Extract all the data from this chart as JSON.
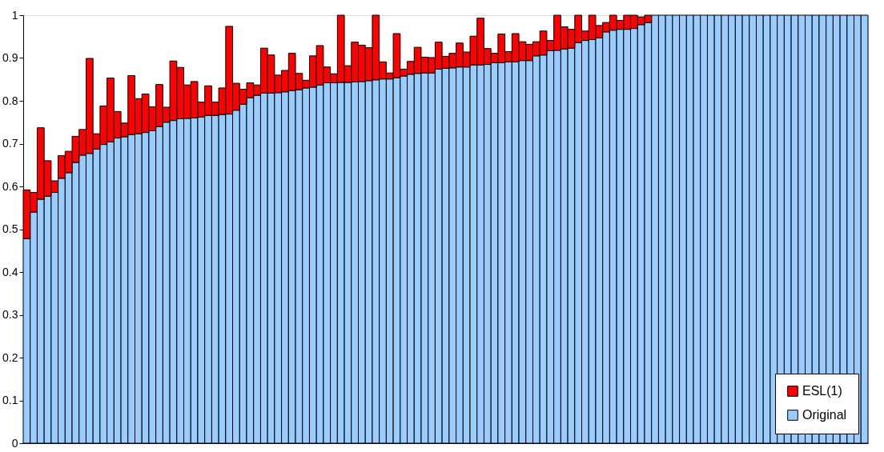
{
  "chart_data": {
    "type": "bar",
    "stacked": true,
    "categories": [
      null,
      null,
      null,
      null,
      null,
      null,
      null,
      null,
      null,
      null,
      null,
      null,
      null,
      null,
      null,
      null,
      null,
      null,
      null,
      null,
      null,
      null,
      null,
      null,
      null,
      null,
      null,
      null,
      null,
      null,
      null,
      null,
      null,
      null,
      null,
      null,
      null,
      null,
      null,
      null,
      null,
      null,
      null,
      null,
      null,
      null,
      null,
      null,
      null,
      null,
      null,
      null,
      null,
      null,
      null,
      null,
      null,
      null,
      null,
      null,
      null,
      null,
      null,
      null,
      null,
      null,
      null,
      null,
      null,
      null,
      null,
      null,
      null,
      null,
      null,
      null,
      null,
      null,
      null,
      null,
      null,
      null,
      null,
      null,
      null,
      null,
      null,
      null,
      null,
      null,
      null,
      null,
      null,
      null,
      null,
      null,
      null,
      null,
      null,
      null,
      null,
      null,
      null,
      null,
      null,
      null,
      null,
      null,
      null,
      null,
      null,
      null,
      null,
      null,
      null,
      null,
      null,
      null,
      null,
      null,
      null
    ],
    "series": [
      {
        "name": "Original",
        "color": "#99ccff",
        "values": [
          0.478,
          0.54,
          0.57,
          0.577,
          0.586,
          0.619,
          0.632,
          0.656,
          0.673,
          0.677,
          0.687,
          0.698,
          0.704,
          0.713,
          0.716,
          0.721,
          0.723,
          0.726,
          0.73,
          0.74,
          0.75,
          0.754,
          0.758,
          0.759,
          0.76,
          0.762,
          0.766,
          0.766,
          0.768,
          0.769,
          0.778,
          0.792,
          0.807,
          0.813,
          0.818,
          0.818,
          0.819,
          0.821,
          0.824,
          0.826,
          0.83,
          0.832,
          0.837,
          0.842,
          0.842,
          0.843,
          0.843,
          0.844,
          0.845,
          0.847,
          0.849,
          0.851,
          0.851,
          0.854,
          0.858,
          0.862,
          0.864,
          0.865,
          0.865,
          0.874,
          0.876,
          0.877,
          0.879,
          0.879,
          0.884,
          0.884,
          0.885,
          0.889,
          0.889,
          0.891,
          0.891,
          0.894,
          0.894,
          0.905,
          0.907,
          0.917,
          0.918,
          0.921,
          0.923,
          0.936,
          0.941,
          0.943,
          0.947,
          0.961,
          0.965,
          0.967,
          0.967,
          0.969,
          0.978,
          0.983,
          1,
          1,
          1,
          1,
          1,
          1,
          1,
          1,
          1,
          1,
          1,
          1,
          1,
          1,
          1,
          1,
          1,
          1,
          1,
          1,
          1,
          1,
          1,
          1,
          1,
          1,
          1,
          1,
          1,
          1,
          1
        ]
      },
      {
        "name": "ESL(1)",
        "color": "#ff0000",
        "values": [
          0.114,
          0.046,
          0.167,
          0.083,
          0.027,
          0.053,
          0.05,
          0.061,
          0.06,
          0.222,
          0.036,
          0.09,
          0.149,
          0.062,
          0.032,
          0.138,
          0.082,
          0.09,
          0.056,
          0.098,
          0.035,
          0.139,
          0.12,
          0.078,
          0.085,
          0.035,
          0.069,
          0.031,
          0.062,
          0.205,
          0.063,
          0.035,
          0.035,
          0.024,
          0.105,
          0.089,
          0.041,
          0.05,
          0.087,
          0.038,
          0.018,
          0.073,
          0.092,
          0.037,
          0.021,
          0.157,
          0.039,
          0.093,
          0.085,
          0.077,
          0.151,
          0.04,
          0.014,
          0.103,
          0.016,
          0.03,
          0.061,
          0.037,
          0.036,
          0.063,
          0.028,
          0.034,
          0.056,
          0.035,
          0.067,
          0.109,
          0.037,
          0.022,
          0.067,
          0.024,
          0.066,
          0.044,
          0.038,
          0.033,
          0.056,
          0.024,
          0.082,
          0.052,
          0.044,
          0.064,
          0.022,
          0.057,
          0.029,
          0.022,
          0.035,
          0.021,
          0.033,
          0.031,
          0.018,
          0.017,
          null,
          null,
          null,
          null,
          null,
          null,
          null,
          null,
          null,
          null,
          null,
          null,
          null,
          null,
          null,
          null,
          null,
          null,
          null,
          null,
          null,
          null,
          null,
          null,
          null,
          null,
          null,
          null,
          null,
          null,
          null
        ]
      }
    ],
    "ylim": [
      0,
      1
    ],
    "yticks": [
      0,
      0.1,
      0.2,
      0.3,
      0.4,
      0.5,
      0.6,
      0.7,
      0.8,
      0.9,
      1
    ],
    "tick_labels": "y",
    "grid": false,
    "legend": "bottom right"
  }
}
